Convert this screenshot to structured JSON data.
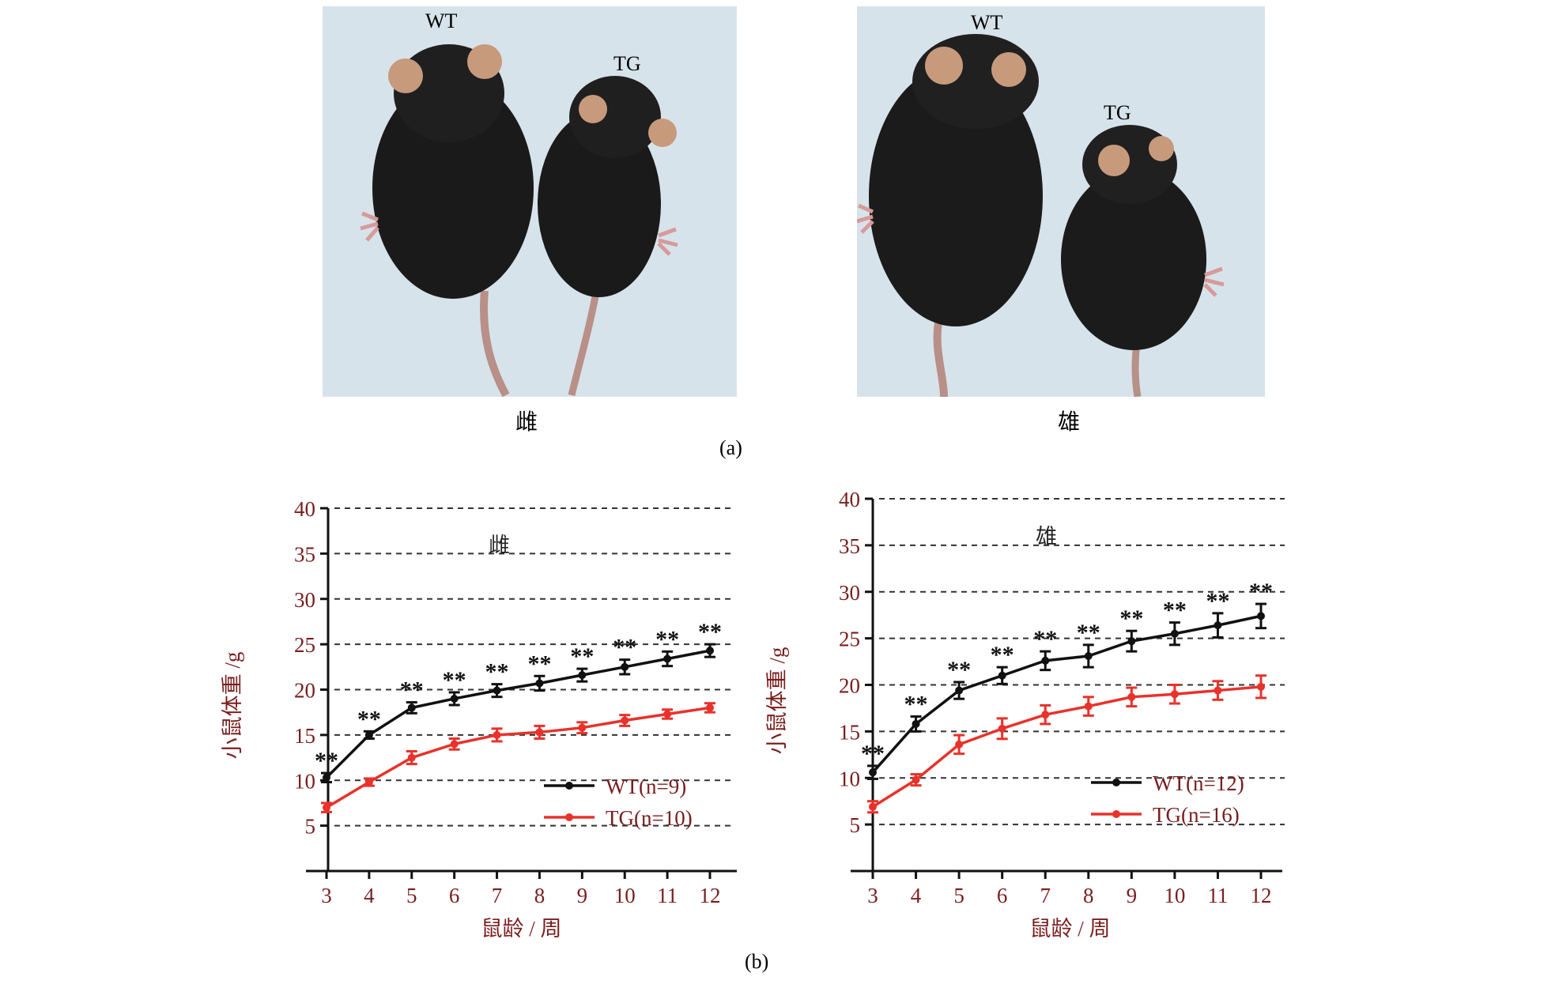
{
  "panel_a": {
    "letter": "(a)",
    "photos": [
      {
        "caption": "雌",
        "label_wt": "WT",
        "label_tg": "TG"
      },
      {
        "caption": "雄",
        "label_wt": "WT",
        "label_tg": "TG"
      }
    ]
  },
  "panel_b": {
    "letter": "(b)"
  },
  "colors": {
    "wt": "#111111",
    "tg": "#e8322a",
    "axis_text": "#7a1e1e"
  },
  "chart_data": [
    {
      "type": "line",
      "title": "雌",
      "xlabel": "鼠龄 / 周",
      "ylabel": "小鼠体重 /g",
      "x": [
        3,
        4,
        5,
        6,
        7,
        8,
        9,
        10,
        11,
        12
      ],
      "ylim": [
        0,
        40
      ],
      "yticks": [
        5,
        10,
        15,
        20,
        25,
        30,
        35,
        40
      ],
      "grid": "dashed-horizontal",
      "legend_position": "lower-right",
      "significance_label": "**",
      "series": [
        {
          "name": "WT(n=9)",
          "color": "#111111",
          "values": [
            10.3,
            15.0,
            18.0,
            19.0,
            19.9,
            20.7,
            21.6,
            22.5,
            23.4,
            24.3
          ],
          "errors": [
            0.5,
            0.4,
            0.6,
            0.7,
            0.7,
            0.8,
            0.7,
            0.8,
            0.8,
            0.7
          ]
        },
        {
          "name": "TG(n=10)",
          "color": "#e8322a",
          "values": [
            7.0,
            9.8,
            12.5,
            14.0,
            15.0,
            15.3,
            15.8,
            16.6,
            17.3,
            18.0
          ],
          "errors": [
            0.5,
            0.4,
            0.7,
            0.6,
            0.7,
            0.7,
            0.6,
            0.6,
            0.5,
            0.5
          ]
        }
      ]
    },
    {
      "type": "line",
      "title": "雄",
      "xlabel": "鼠龄 / 周",
      "ylabel": "小鼠体重 /g",
      "x": [
        3,
        4,
        5,
        6,
        7,
        8,
        9,
        10,
        11,
        12
      ],
      "ylim": [
        0,
        40
      ],
      "yticks": [
        5,
        10,
        15,
        20,
        25,
        30,
        35,
        40
      ],
      "grid": "dashed-horizontal",
      "legend_position": "lower-right",
      "significance_label": "**",
      "series": [
        {
          "name": "WT(n=12)",
          "color": "#111111",
          "values": [
            10.6,
            15.8,
            19.4,
            21.0,
            22.6,
            23.1,
            24.7,
            25.5,
            26.4,
            27.4
          ],
          "errors": [
            0.7,
            0.8,
            0.9,
            0.9,
            1.0,
            1.2,
            1.1,
            1.2,
            1.3,
            1.3
          ]
        },
        {
          "name": "TG(n=16)",
          "color": "#e8322a",
          "values": [
            6.9,
            9.8,
            13.6,
            15.3,
            16.8,
            17.7,
            18.7,
            19.0,
            19.4,
            19.8
          ],
          "errors": [
            0.6,
            0.6,
            1.0,
            1.1,
            1.0,
            1.0,
            1.0,
            1.0,
            1.0,
            1.2
          ]
        }
      ]
    }
  ]
}
